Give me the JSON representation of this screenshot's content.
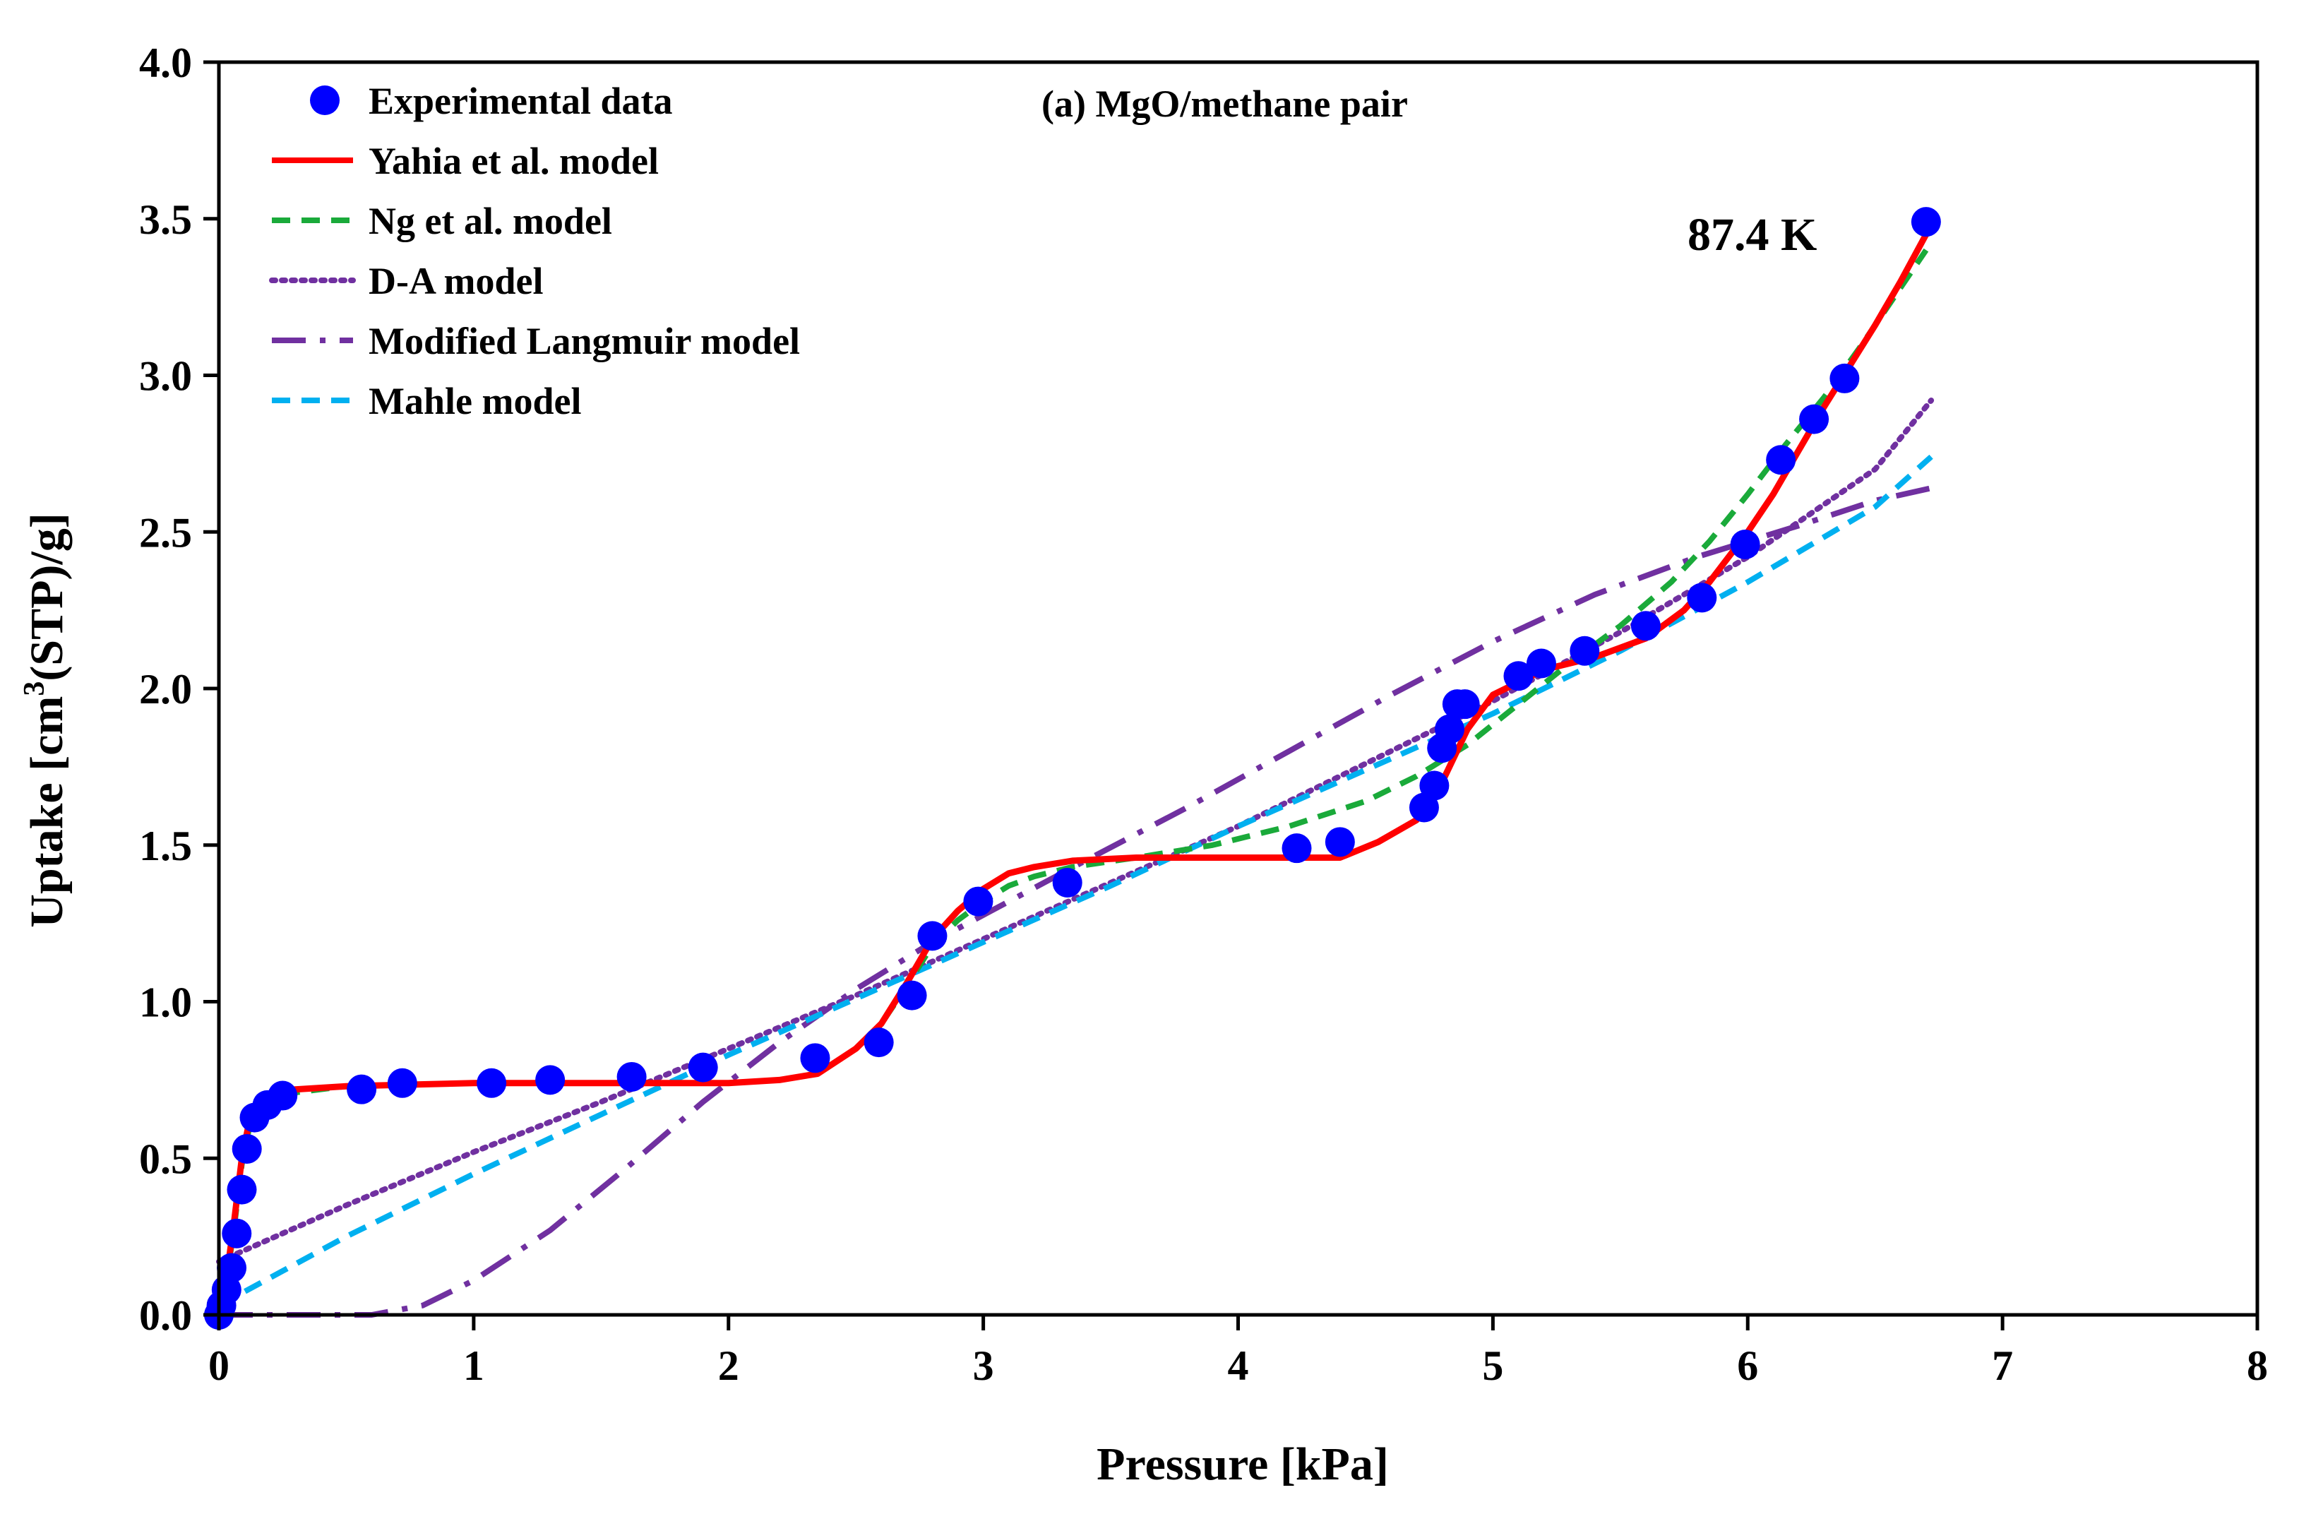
{
  "chart_data": {
    "type": "scatter",
    "title": "(a) MgO/methane pair",
    "annotation": "87.4 K",
    "xlabel": "Pressure [kPa]",
    "ylabel_parts": [
      "Uptake [cm",
      "3",
      "(STP)/g]"
    ],
    "xlim": [
      0,
      8
    ],
    "ylim": [
      0,
      4
    ],
    "xticks": [
      0,
      1,
      2,
      3,
      4,
      5,
      6,
      7,
      8
    ],
    "xtick_labels": [
      "0",
      "1",
      "2",
      "3",
      "4",
      "5",
      "6",
      "7",
      "8"
    ],
    "yticks": [
      0,
      0.5,
      1,
      1.5,
      2,
      2.5,
      3,
      3.5,
      4
    ],
    "ytick_labels": [
      "0.0",
      "0.5",
      "1.0",
      "1.5",
      "2.0",
      "2.5",
      "3.0",
      "3.5",
      "4.0"
    ],
    "grid": false,
    "legend_position": "top-left",
    "series": [
      {
        "name": "Experimental data",
        "kind": "markers",
        "color": "#0000ff",
        "x": [
          0.0,
          0.01,
          0.03,
          0.05,
          0.07,
          0.09,
          0.11,
          0.14,
          0.19,
          0.25,
          0.56,
          0.72,
          1.07,
          1.3,
          1.62,
          1.9,
          2.34,
          2.59,
          2.72,
          2.8,
          2.98,
          3.33,
          4.23,
          4.4,
          4.73,
          4.77,
          4.8,
          4.83,
          4.86,
          4.89,
          5.1,
          5.19,
          5.36,
          5.6,
          5.82,
          5.99,
          6.13,
          6.26,
          6.38,
          6.7
        ],
        "y": [
          0.0,
          0.03,
          0.08,
          0.15,
          0.26,
          0.4,
          0.53,
          0.63,
          0.67,
          0.7,
          0.72,
          0.74,
          0.74,
          0.75,
          0.76,
          0.79,
          0.82,
          0.87,
          1.02,
          1.21,
          1.32,
          1.38,
          1.49,
          1.51,
          1.62,
          1.69,
          1.81,
          1.87,
          1.95,
          1.95,
          2.04,
          2.08,
          2.12,
          2.2,
          2.29,
          2.46,
          2.73,
          2.86,
          2.99,
          3.49
        ]
      },
      {
        "name": "Yahia et al. model",
        "kind": "line",
        "dash": "solid",
        "color": "#ff0000",
        "x": [
          0.0,
          0.03,
          0.06,
          0.09,
          0.12,
          0.16,
          0.22,
          0.3,
          0.5,
          1.0,
          1.5,
          2.0,
          2.2,
          2.35,
          2.5,
          2.6,
          2.7,
          2.8,
          2.9,
          3.0,
          3.1,
          3.2,
          3.35,
          3.6,
          4.0,
          4.3,
          4.4,
          4.55,
          4.7,
          4.8,
          4.9,
          5.0,
          5.2,
          5.4,
          5.6,
          5.75,
          5.85,
          6.0,
          6.1,
          6.2,
          6.3,
          6.4,
          6.5,
          6.6,
          6.7
        ],
        "y": [
          0.0,
          0.12,
          0.3,
          0.5,
          0.62,
          0.68,
          0.71,
          0.72,
          0.73,
          0.74,
          0.74,
          0.74,
          0.75,
          0.77,
          0.85,
          0.93,
          1.06,
          1.2,
          1.29,
          1.36,
          1.41,
          1.43,
          1.45,
          1.46,
          1.46,
          1.46,
          1.46,
          1.51,
          1.58,
          1.7,
          1.87,
          1.98,
          2.06,
          2.1,
          2.16,
          2.25,
          2.34,
          2.5,
          2.62,
          2.76,
          2.9,
          3.03,
          3.16,
          3.3,
          3.45
        ]
      },
      {
        "name": "Ng et al. model",
        "kind": "line",
        "dash": "dash",
        "color": "#1aaa3a",
        "x": [
          0.0,
          0.03,
          0.06,
          0.09,
          0.12,
          0.16,
          0.22,
          0.3,
          0.5,
          1.0,
          1.5,
          2.0,
          2.2,
          2.35,
          2.5,
          2.6,
          2.7,
          2.8,
          2.9,
          3.0,
          3.1,
          3.2,
          3.35,
          3.6,
          3.9,
          4.2,
          4.5,
          4.7,
          4.9,
          5.1,
          5.3,
          5.5,
          5.7,
          5.85,
          6.0,
          6.15,
          6.3,
          6.45,
          6.6,
          6.7
        ],
        "y": [
          0.0,
          0.11,
          0.28,
          0.48,
          0.6,
          0.66,
          0.69,
          0.71,
          0.73,
          0.74,
          0.74,
          0.74,
          0.75,
          0.77,
          0.85,
          0.93,
          1.05,
          1.18,
          1.26,
          1.32,
          1.37,
          1.4,
          1.43,
          1.46,
          1.5,
          1.56,
          1.64,
          1.72,
          1.82,
          1.95,
          2.08,
          2.2,
          2.34,
          2.47,
          2.62,
          2.78,
          2.93,
          3.1,
          3.28,
          3.4
        ]
      },
      {
        "name": "D-A model",
        "kind": "line",
        "dash": "dot",
        "color": "#7030a0",
        "x": [
          0.0,
          0.25,
          0.5,
          1.0,
          1.5,
          2.0,
          2.5,
          3.0,
          3.5,
          4.0,
          4.5,
          5.0,
          5.5,
          6.0,
          6.5,
          6.72
        ],
        "y": [
          0.17,
          0.26,
          0.35,
          0.52,
          0.68,
          0.85,
          1.02,
          1.2,
          1.38,
          1.56,
          1.76,
          1.96,
          2.18,
          2.42,
          2.7,
          2.92
        ]
      },
      {
        "name": "Modified Langmuir model",
        "kind": "line",
        "dash": "dashdot",
        "color": "#7030a0",
        "x": [
          0.0,
          0.3,
          0.6,
          0.8,
          1.0,
          1.3,
          1.6,
          1.9,
          2.2,
          2.5,
          2.8,
          3.1,
          3.4,
          3.8,
          4.2,
          4.6,
          5.0,
          5.4,
          5.8,
          6.2,
          6.5,
          6.72
        ],
        "y": [
          0.0,
          0.0,
          0.0,
          0.03,
          0.11,
          0.27,
          0.47,
          0.68,
          0.87,
          1.04,
          1.19,
          1.32,
          1.45,
          1.62,
          1.8,
          1.98,
          2.15,
          2.3,
          2.42,
          2.52,
          2.6,
          2.64
        ]
      },
      {
        "name": "Mahle model",
        "kind": "line",
        "dash": "dash",
        "color": "#00b0f0",
        "x": [
          0.0,
          0.25,
          0.5,
          1.0,
          1.5,
          2.0,
          2.5,
          3.0,
          3.5,
          4.0,
          4.5,
          5.0,
          5.5,
          6.0,
          6.5,
          6.72
        ],
        "y": [
          0.03,
          0.14,
          0.25,
          0.45,
          0.64,
          0.83,
          1.01,
          1.19,
          1.37,
          1.56,
          1.74,
          1.92,
          2.12,
          2.34,
          2.58,
          2.74
        ]
      }
    ]
  }
}
